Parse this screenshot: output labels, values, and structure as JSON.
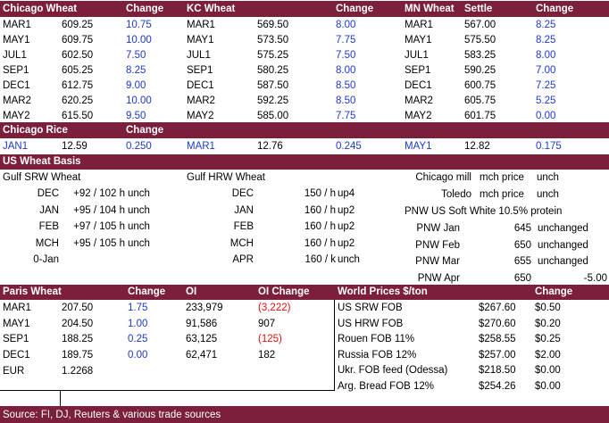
{
  "top": {
    "headers": [
      "Chicago Wheat",
      "Change",
      "KC Wheat",
      "Change",
      "MN Wheat",
      "Settle",
      "Change"
    ],
    "rows": [
      {
        "chi_m": "MAR1",
        "chi_p": "609.25",
        "chi_c": "10.75",
        "kc_m": "MAR1",
        "kc_p": "569.50",
        "kc_c": "8.00",
        "mn_m": "MAR1",
        "mn_p": "567.00",
        "mn_c": "8.25"
      },
      {
        "chi_m": "MAY1",
        "chi_p": "609.75",
        "chi_c": "10.00",
        "kc_m": "MAY1",
        "kc_p": "573.50",
        "kc_c": "7.75",
        "mn_m": "MAY1",
        "mn_p": "575.50",
        "mn_c": "8.25"
      },
      {
        "chi_m": "JUL1",
        "chi_p": "602.50",
        "chi_c": "7.50",
        "kc_m": "JUL1",
        "kc_p": "575.25",
        "kc_c": "7.50",
        "mn_m": "JUL1",
        "mn_p": "583.25",
        "mn_c": "8.00"
      },
      {
        "chi_m": "SEP1",
        "chi_p": "605.25",
        "chi_c": "8.25",
        "kc_m": "SEP1",
        "kc_p": "580.25",
        "kc_c": "8.00",
        "mn_m": "SEP1",
        "mn_p": "590.25",
        "mn_c": "7.00"
      },
      {
        "chi_m": "DEC1",
        "chi_p": "612.75",
        "chi_c": "9.00",
        "kc_m": "DEC1",
        "kc_p": "587.50",
        "kc_c": "8.50",
        "mn_m": "DEC1",
        "mn_p": "600.75",
        "mn_c": "7.25"
      },
      {
        "chi_m": "MAR2",
        "chi_p": "620.25",
        "chi_c": "10.00",
        "kc_m": "MAR2",
        "kc_p": "592.25",
        "kc_c": "8.50",
        "mn_m": "MAR2",
        "mn_p": "605.75",
        "mn_c": "5.25"
      },
      {
        "chi_m": "MAY2",
        "chi_p": "615.50",
        "chi_c": "9.50",
        "kc_m": "MAY2",
        "kc_p": "585.00",
        "kc_c": "7.75",
        "mn_m": "MAY2",
        "mn_p": "601.75",
        "mn_c": "0.00"
      }
    ]
  },
  "rice": {
    "headers": [
      "Chicago Rice",
      "Change"
    ],
    "row": [
      "JAN1",
      "12.59",
      "0.250",
      "MAR1",
      "12.76",
      "0.245",
      "MAY1",
      "12.82",
      "0.175"
    ]
  },
  "basis": {
    "title": "US Wheat Basis",
    "gulf_srw_title": "Gulf SRW Wheat",
    "gulf_hrw_title": "Gulf HRW Wheat",
    "srw": [
      {
        "m": "DEC",
        "v": "+92 / 102 h",
        "c": "unch"
      },
      {
        "m": "JAN",
        "v": "+95 / 104 h",
        "c": "unch"
      },
      {
        "m": "FEB",
        "v": "+97 / 105 h",
        "c": "unch"
      },
      {
        "m": "MCH",
        "v": "+95 / 105 h",
        "c": "unch"
      },
      {
        "m": "0-Jan",
        "v": "",
        "c": ""
      }
    ],
    "hrw": [
      {
        "m": "DEC",
        "v": "150 / h",
        "c": "up4"
      },
      {
        "m": "JAN",
        "v": "160 / h",
        "c": "up2"
      },
      {
        "m": "FEB",
        "v": "160 / h",
        "c": "up2"
      },
      {
        "m": "MCH",
        "v": "160 / h",
        "c": "up2"
      },
      {
        "m": "APR",
        "v": "160 / k",
        "c": "unch"
      }
    ],
    "mills": [
      {
        "n": "Chicago mill",
        "v": "mch price",
        "c": "unch"
      },
      {
        "n": "Toledo",
        "v": "mch price",
        "c": "unch"
      }
    ],
    "pnw_title": "PNW US Soft White 10.5% protein",
    "pnw": [
      {
        "m": "PNW Jan",
        "v": "645",
        "c": "unchanged"
      },
      {
        "m": "PNW Feb",
        "v": "650",
        "c": "unchanged"
      },
      {
        "m": "PNW Mar",
        "v": "655",
        "c": "unchanged"
      },
      {
        "m": "PNW Apr",
        "v": "650",
        "c": "-5.00"
      }
    ]
  },
  "paris": {
    "headers": [
      "Paris Wheat",
      "Change",
      "OI",
      "OI Change"
    ],
    "rows": [
      {
        "m": "MAR1",
        "p": "207.50",
        "c": "1.75",
        "oi": "233,979",
        "oic": "(3,222)",
        "neg": true
      },
      {
        "m": "MAY1",
        "p": "204.50",
        "c": "1.00",
        "oi": "91,586",
        "oic": "907",
        "neg": false
      },
      {
        "m": "SEP1",
        "p": "188.25",
        "c": "0.25",
        "oi": "63,125",
        "oic": "(125)",
        "neg": true
      },
      {
        "m": "DEC1",
        "p": "189.75",
        "c": "0.00",
        "oi": "62,471",
        "oic": "182",
        "neg": false
      }
    ],
    "eur_label": "EUR",
    "eur_value": "1.2268"
  },
  "world": {
    "headers": [
      "World Prices $/ton",
      "Change"
    ],
    "rows": [
      {
        "n": "US SRW FOB",
        "p": "$267.60",
        "c": "$0.50"
      },
      {
        "n": "US HRW FOB",
        "p": "$270.60",
        "c": "$0.20"
      },
      {
        "n": "Rouen FOB 11%",
        "p": "$258.55",
        "c": "$0.25"
      },
      {
        "n": "Russia FOB 12%",
        "p": "$257.00",
        "c": "$2.00"
      },
      {
        "n": "Ukr. FOB feed (Odessa)",
        "p": "$218.50",
        "c": "$0.00"
      },
      {
        "n": "Arg. Bread FOB 12%",
        "p": "$254.26",
        "c": "$0.00"
      }
    ]
  },
  "source": "Source: FI, DJ, Reuters & various trade sources",
  "colors": {
    "header_bg": "#7b1f3b",
    "positive": "#1f39c8",
    "negative": "#e01010"
  }
}
